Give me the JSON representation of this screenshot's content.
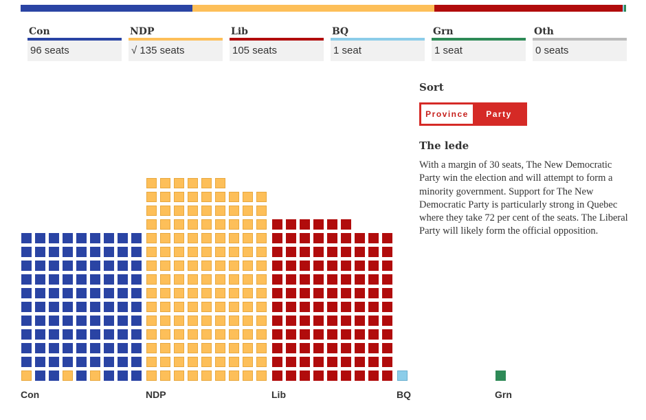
{
  "parties": [
    {
      "key": "con",
      "name": "Con",
      "seats_label": "96 seats",
      "seats": 96,
      "color": "#2a44a4"
    },
    {
      "key": "ndp",
      "name": "NDP",
      "seats_label": "√ 135 seats",
      "seats": 135,
      "color": "#fdbf59"
    },
    {
      "key": "lib",
      "name": "Lib",
      "seats_label": "105 seats",
      "seats": 105,
      "color": "#b10c0c"
    },
    {
      "key": "bq",
      "name": "BQ",
      "seats_label": "1 seat",
      "seats": 1,
      "color": "#8ccde9"
    },
    {
      "key": "grn",
      "name": "Grn",
      "seats_label": "1 seat",
      "seats": 1,
      "color": "#2e8a57"
    },
    {
      "key": "oth",
      "name": "Oth",
      "seats_label": "0 seats",
      "seats": 0,
      "color": "#bbbbbb"
    }
  ],
  "sidebar": {
    "sort_title": "Sort",
    "sort_options": [
      "Province",
      "Party"
    ],
    "sort_selected": "Party",
    "lede_title": "The lede",
    "lede_text": "With a margin of 30 seats, The New Democratic Party win the election and will attempt to form a minority government. Support for The New Democratic Party is particularly strong in Quebec where they take 72 per cent of the seats. The Liberal Party will likely form the official opposition."
  },
  "chart_data": {
    "type": "waffle",
    "title": "",
    "unit": "seat",
    "total_seats": 338,
    "categories": [
      "Con",
      "NDP",
      "Lib",
      "BQ",
      "Grn",
      "Oth"
    ],
    "values": [
      96,
      135,
      105,
      1,
      1,
      0
    ],
    "columns_per_group": 9,
    "group_labels": [
      "Con",
      "NDP",
      "Lib",
      "BQ",
      "Grn"
    ]
  }
}
